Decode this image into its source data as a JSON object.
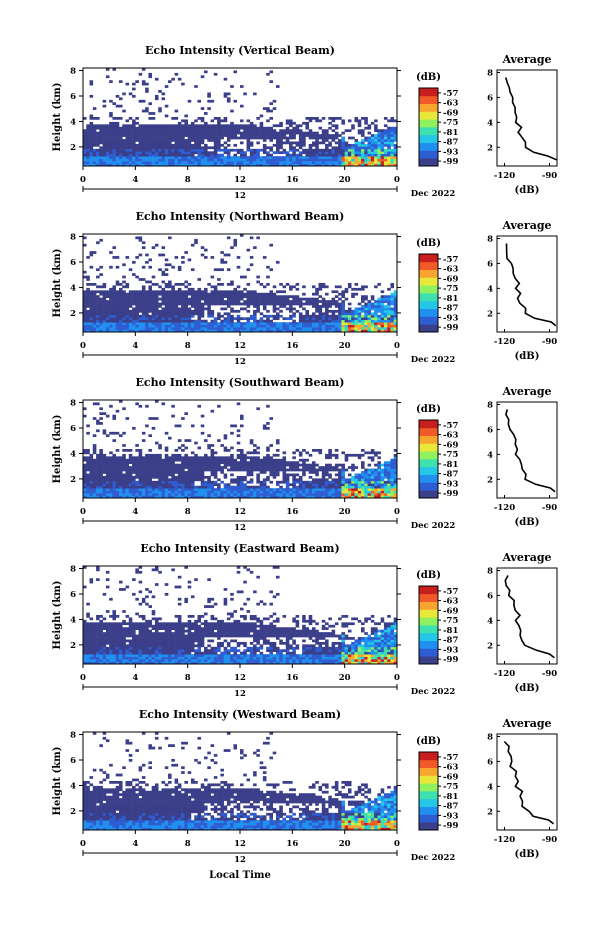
{
  "colors": {
    "scale": [
      "#3b3f8a",
      "#2e5cd1",
      "#1f8ff0",
      "#25c7e6",
      "#3fe0b0",
      "#8ff060",
      "#e8e83a",
      "#f8a530",
      "#f05a28",
      "#c81e1e"
    ]
  },
  "panels": [
    {
      "title": "Echo Intensity (Vertical Beam)",
      "seed": 1
    },
    {
      "title": "Echo Intensity (Northward Beam)",
      "seed": 2
    },
    {
      "title": "Echo Intensity (Southward Beam)",
      "seed": 3
    },
    {
      "title": "Echo Intensity (Eastward Beam)",
      "seed": 4
    },
    {
      "title": "Echo Intensity (Westward Beam)",
      "seed": 5
    }
  ],
  "labels": {
    "ylabel": "Height (km)",
    "xlabel": "Local Time",
    "date_label": "Dec 2022",
    "date_label_alt": "Dec 2022",
    "date_labels": [
      "Dec 2022",
      "Dec 2022",
      "Dec 2022",
      "Dec 2022",
      "Dec 2022"
    ],
    "colorbar_unit": "(dB)",
    "avg_title": "Average",
    "avg_xlabel": "(dB)"
  },
  "chart_data": {
    "type": "heatmap",
    "x_ticks": [
      "0",
      "4",
      "8",
      "12",
      "16",
      "20",
      "0"
    ],
    "x_range": [
      0,
      24
    ],
    "y_ticks": [
      "2",
      "4",
      "6",
      "8"
    ],
    "y_range": [
      0.5,
      8.2
    ],
    "day_marker": "12",
    "colorbar_ticks": [
      "-57",
      "-63",
      "-69",
      "-75",
      "-81",
      "-87",
      "-93",
      "-99"
    ],
    "colorbar_range": [
      -102,
      -54
    ],
    "avg_x_ticks": [
      "-120",
      "-90"
    ],
    "avg_x_range": [
      -125,
      -85
    ],
    "avg_y_ticks": [
      "2",
      "4",
      "6",
      "8"
    ],
    "average_profile": {
      "height": [
        1.0,
        1.3,
        1.6,
        2.0,
        2.4,
        2.8,
        3.2,
        3.6,
        4.0,
        4.4,
        4.8,
        5.2,
        5.6,
        6.0,
        6.4,
        6.8,
        7.2,
        7.6
      ],
      "db": [
        -86,
        -90,
        -100,
        -105,
        -107,
        -109,
        -110,
        -109,
        -112,
        -111,
        -114,
        -113,
        -115,
        -116,
        -117,
        -118,
        -118,
        -119
      ]
    }
  }
}
